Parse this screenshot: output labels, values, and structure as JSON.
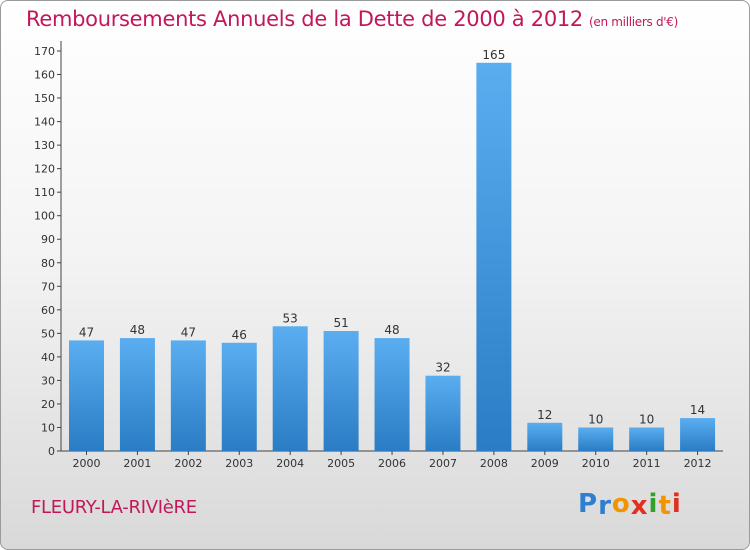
{
  "chart_data": {
    "type": "bar",
    "title": "Remboursements Annuels de la Dette de 2000 à 2012",
    "subtitle": "(en milliers d'€)",
    "categories": [
      "2000",
      "2001",
      "2002",
      "2003",
      "2004",
      "2005",
      "2006",
      "2007",
      "2008",
      "2009",
      "2010",
      "2011",
      "2012"
    ],
    "values": [
      47,
      48,
      47,
      46,
      53,
      51,
      48,
      32,
      165,
      12,
      10,
      10,
      14
    ],
    "ylim": [
      0,
      170
    ],
    "yticks": [
      0,
      10,
      20,
      30,
      40,
      50,
      60,
      70,
      80,
      90,
      100,
      110,
      120,
      130,
      140,
      150,
      160,
      170
    ],
    "xlabel": "",
    "ylabel": "",
    "grid": false,
    "bar_color": "#3a8fd6"
  },
  "location": "FLEURY-LA-RIVIèRE",
  "logo": {
    "letters": [
      "P",
      "r",
      "o",
      "x",
      "i",
      "t",
      "i"
    ],
    "colors": [
      "#2e7fd0",
      "#2e7fd0",
      "#f29400",
      "#e0301e",
      "#33a02c",
      "#f29400",
      "#e0301e"
    ]
  }
}
